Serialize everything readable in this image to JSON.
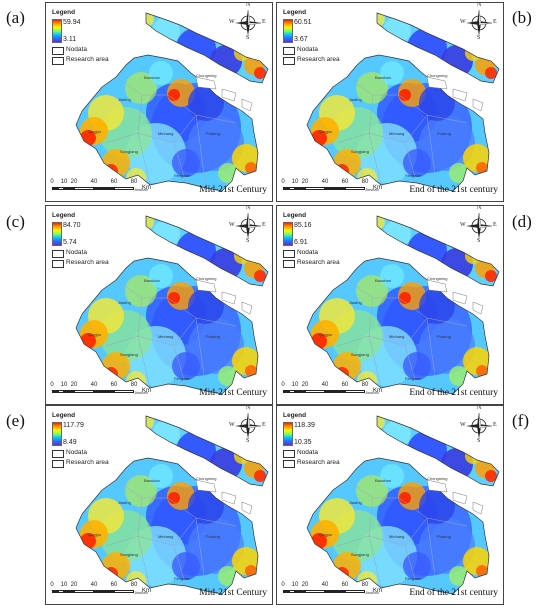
{
  "panels": [
    {
      "id": "a",
      "label": "(a)",
      "legend_max": "59.94",
      "legend_min": "3.11",
      "period": "Mid-21st Century",
      "has_scale": true,
      "side": "left",
      "row": 0
    },
    {
      "id": "b",
      "label": "(b)",
      "legend_max": "60.51",
      "legend_min": "3.67",
      "period": "End of the 21st century",
      "has_scale": false,
      "side": "right",
      "row": 0
    },
    {
      "id": "c",
      "label": "(c)",
      "legend_max": "84.70",
      "legend_min": "5.74",
      "period": "Mid-21st Century",
      "has_scale": true,
      "side": "left",
      "row": 1
    },
    {
      "id": "d",
      "label": "(d)",
      "legend_max": "85.16",
      "legend_min": "6.91",
      "period": "End of the 21st century",
      "has_scale": false,
      "side": "right",
      "row": 1
    },
    {
      "id": "e",
      "label": "(e)",
      "legend_max": "117.79",
      "legend_min": "8.49",
      "period": "Mid-21st Century",
      "has_scale": true,
      "side": "left",
      "row": 2
    },
    {
      "id": "f",
      "label": "(f)",
      "legend_max": "118.39",
      "legend_min": "10.35",
      "period": "End of the 21st century",
      "has_scale": false,
      "side": "right",
      "row": 2
    }
  ],
  "legend": {
    "title": "Legend",
    "nodata": "Nodata",
    "research_area": "Research area"
  },
  "compass": {
    "n": "N",
    "s": "S",
    "e": "E",
    "w": "W"
  },
  "scale": {
    "ticks": [
      "0",
      "10",
      "20",
      "40",
      "60",
      "80"
    ],
    "unit": "Km"
  },
  "districts": [
    "Baoshan",
    "Jiading",
    "Chongming",
    "Qingpu",
    "Minhang",
    "Pudong",
    "Songjiang",
    "Fengxian",
    "Jinshan"
  ],
  "colors": {
    "high": "#ff1f00",
    "mid_high": "#ffae00",
    "mid": "#fff200",
    "mid_low": "#66ff55",
    "low": "#00c8ff",
    "lowest": "#3a4cff"
  }
}
